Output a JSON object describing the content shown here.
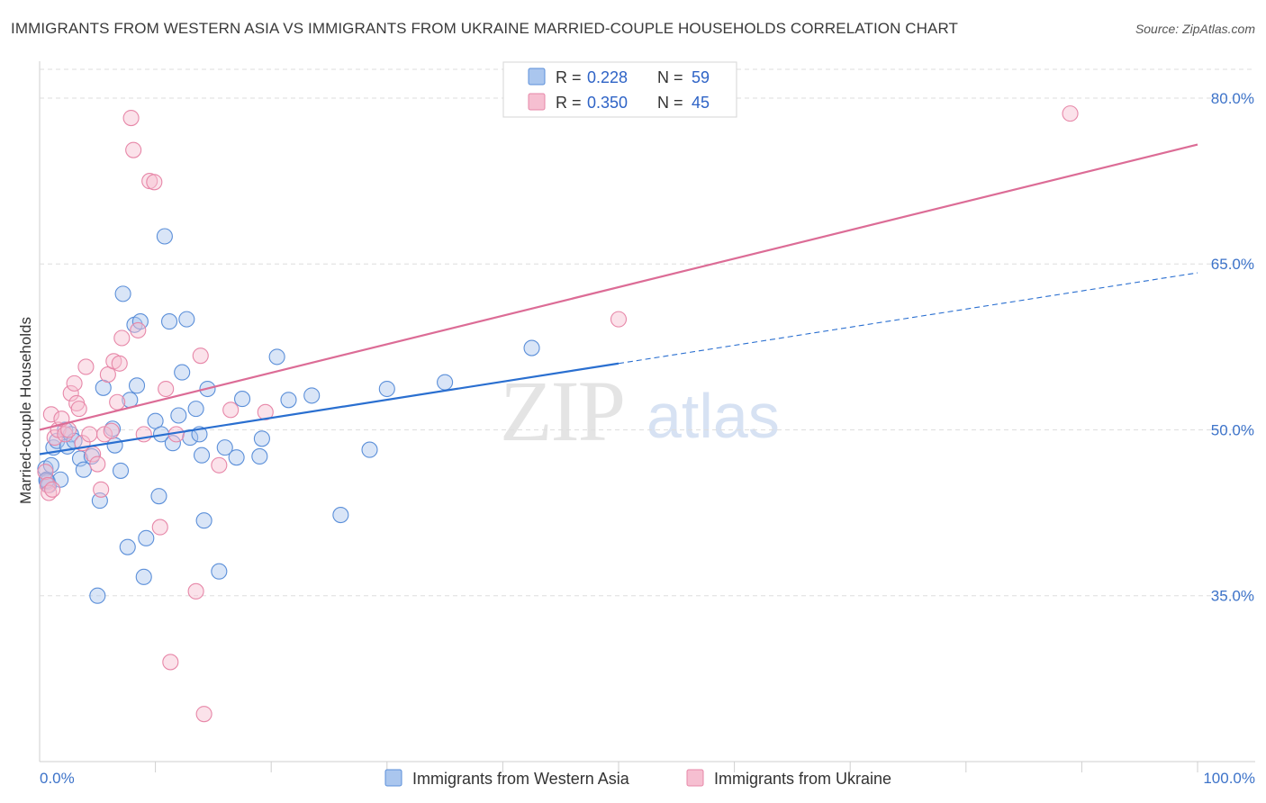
{
  "chart_data": {
    "type": "scatter",
    "title": "IMMIGRANTS FROM WESTERN ASIA VS IMMIGRANTS FROM UKRAINE MARRIED-COUPLE HOUSEHOLDS CORRELATION CHART",
    "source": "Source: ZipAtlas.com",
    "ylabel": "Married-couple Households",
    "xlim": [
      0,
      100
    ],
    "ylim": [
      20,
      82.6
    ],
    "x_tick_labels": [
      "0.0%",
      "100.0%"
    ],
    "y_ticks": [
      {
        "value": 35,
        "label": "35.0%"
      },
      {
        "value": 50,
        "label": "50.0%"
      },
      {
        "value": 65,
        "label": "65.0%"
      },
      {
        "value": 80,
        "label": "80.0%"
      }
    ],
    "watermark": {
      "zip": "ZIP",
      "atlas": "atlas"
    },
    "legend": [
      {
        "r_label": "R =",
        "r_value": "0.228",
        "n_label": "N =",
        "n_value": "59"
      },
      {
        "r_label": "R =",
        "r_value": "0.350",
        "n_label": "N =",
        "n_value": "45"
      }
    ],
    "series": [
      {
        "name": "Immigrants from Western Asia",
        "color": "#5b8fd9",
        "fill": "#aac6ee",
        "line_color": "#2a6fd0",
        "trend": {
          "x0": 0,
          "y0": 47.8,
          "x1": 100,
          "y1": 64.2,
          "solid_until": 50
        },
        "points": [
          [
            0.5,
            46.5
          ],
          [
            0.6,
            45.5
          ],
          [
            0.7,
            45.3
          ],
          [
            0.8,
            45.0
          ],
          [
            1.0,
            46.8
          ],
          [
            1.2,
            48.4
          ],
          [
            1.5,
            49.0
          ],
          [
            1.8,
            45.5
          ],
          [
            2.2,
            50.0
          ],
          [
            2.4,
            48.5
          ],
          [
            2.7,
            49.6
          ],
          [
            3.0,
            49.0
          ],
          [
            3.5,
            47.4
          ],
          [
            3.8,
            46.4
          ],
          [
            4.5,
            47.6
          ],
          [
            5.0,
            35.0
          ],
          [
            5.2,
            43.6
          ],
          [
            5.5,
            53.8
          ],
          [
            6.3,
            50.1
          ],
          [
            6.5,
            48.6
          ],
          [
            7.0,
            46.3
          ],
          [
            7.2,
            62.3
          ],
          [
            7.6,
            39.4
          ],
          [
            7.8,
            52.7
          ],
          [
            8.2,
            59.5
          ],
          [
            8.4,
            54.0
          ],
          [
            8.7,
            59.8
          ],
          [
            9.0,
            36.7
          ],
          [
            9.2,
            40.2
          ],
          [
            10.0,
            50.8
          ],
          [
            10.3,
            44.0
          ],
          [
            10.5,
            49.6
          ],
          [
            10.8,
            67.5
          ],
          [
            11.2,
            59.8
          ],
          [
            11.5,
            48.8
          ],
          [
            12.0,
            51.3
          ],
          [
            12.3,
            55.2
          ],
          [
            12.7,
            60.0
          ],
          [
            13.0,
            49.3
          ],
          [
            13.5,
            51.9
          ],
          [
            13.8,
            49.6
          ],
          [
            14.0,
            47.7
          ],
          [
            14.2,
            41.8
          ],
          [
            14.5,
            53.7
          ],
          [
            15.5,
            37.2
          ],
          [
            16.0,
            48.4
          ],
          [
            17.0,
            47.5
          ],
          [
            17.5,
            52.8
          ],
          [
            19.0,
            47.6
          ],
          [
            19.2,
            49.2
          ],
          [
            20.5,
            56.6
          ],
          [
            21.5,
            52.7
          ],
          [
            23.5,
            53.1
          ],
          [
            26.0,
            42.3
          ],
          [
            28.5,
            48.2
          ],
          [
            30.0,
            53.7
          ],
          [
            35.0,
            54.3
          ],
          [
            42.5,
            57.4
          ],
          [
            0.6,
            45.4
          ]
        ]
      },
      {
        "name": "Immigrants from Ukraine",
        "color": "#e787a8",
        "fill": "#f6bfd1",
        "line_color": "#dc6c96",
        "trend": {
          "x0": 0,
          "y0": 50.0,
          "x1": 100,
          "y1": 75.8,
          "solid_until": 100
        },
        "points": [
          [
            0.5,
            46.2
          ],
          [
            0.7,
            45.0
          ],
          [
            0.8,
            44.3
          ],
          [
            1.0,
            51.4
          ],
          [
            1.3,
            49.3
          ],
          [
            1.6,
            50.0
          ],
          [
            1.9,
            51.0
          ],
          [
            2.2,
            49.6
          ],
          [
            2.5,
            50.0
          ],
          [
            2.7,
            53.3
          ],
          [
            3.0,
            54.2
          ],
          [
            3.2,
            52.4
          ],
          [
            3.4,
            51.9
          ],
          [
            3.7,
            48.8
          ],
          [
            4.0,
            55.7
          ],
          [
            4.3,
            49.6
          ],
          [
            4.6,
            47.8
          ],
          [
            5.0,
            46.9
          ],
          [
            5.3,
            44.6
          ],
          [
            5.6,
            49.6
          ],
          [
            5.9,
            55.0
          ],
          [
            6.2,
            49.9
          ],
          [
            6.4,
            56.2
          ],
          [
            6.7,
            52.5
          ],
          [
            6.9,
            56.0
          ],
          [
            7.1,
            58.3
          ],
          [
            7.9,
            78.2
          ],
          [
            8.1,
            75.3
          ],
          [
            8.5,
            59.0
          ],
          [
            9.0,
            49.6
          ],
          [
            9.5,
            72.5
          ],
          [
            9.9,
            72.4
          ],
          [
            10.4,
            41.2
          ],
          [
            10.9,
            53.7
          ],
          [
            11.3,
            29.0
          ],
          [
            11.8,
            49.6
          ],
          [
            13.5,
            35.4
          ],
          [
            13.9,
            56.7
          ],
          [
            14.2,
            24.3
          ],
          [
            15.5,
            46.8
          ],
          [
            16.5,
            51.8
          ],
          [
            19.5,
            51.6
          ],
          [
            50.0,
            60.0
          ],
          [
            89.0,
            78.6
          ],
          [
            1.1,
            44.6
          ]
        ]
      }
    ]
  }
}
